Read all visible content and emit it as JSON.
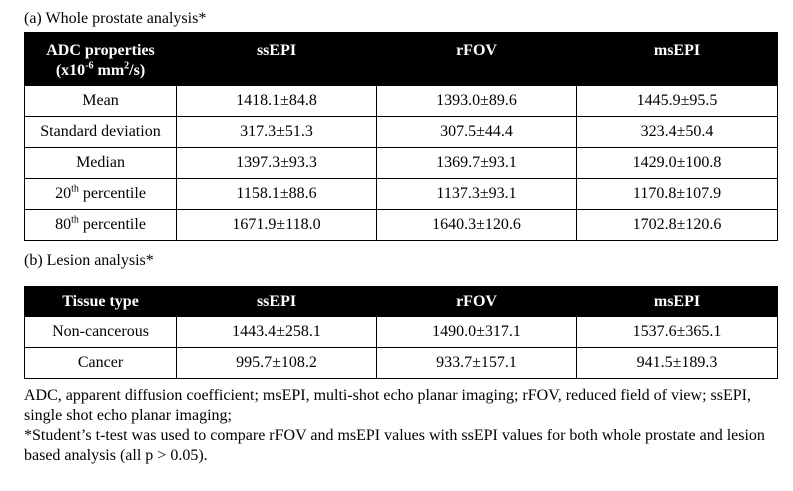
{
  "caption_a": "(a) Whole prostate analysis*",
  "table_a": {
    "header": {
      "col0_line1": "ADC properties",
      "col0_line2_pre": "(x10",
      "col0_line2_sup1": "-6",
      "col0_line2_mid": " mm",
      "col0_line2_sup2": "2",
      "col0_line2_post": "/s)",
      "col1": "ssEPI",
      "col2": "rFOV",
      "col3": "msEPI"
    },
    "rows": [
      {
        "label": "Mean",
        "label_sup": "",
        "label_post": "",
        "ssEPI": "1418.1±84.8",
        "rFOV": "1393.0±89.6",
        "msEPI": "1445.9±95.5"
      },
      {
        "label": "Standard deviation",
        "label_sup": "",
        "label_post": "",
        "ssEPI": "317.3±51.3",
        "rFOV": "307.5±44.4",
        "msEPI": "323.4±50.4"
      },
      {
        "label": "Median",
        "label_sup": "",
        "label_post": "",
        "ssEPI": "1397.3±93.3",
        "rFOV": "1369.7±93.1",
        "msEPI": "1429.0±100.8"
      },
      {
        "label": "20",
        "label_sup": "th",
        "label_post": " percentile",
        "ssEPI": "1158.1±88.6",
        "rFOV": "1137.3±93.1",
        "msEPI": "1170.8±107.9"
      },
      {
        "label": "80",
        "label_sup": "th",
        "label_post": " percentile",
        "ssEPI": "1671.9±118.0",
        "rFOV": "1640.3±120.6",
        "msEPI": "1702.8±120.6"
      }
    ]
  },
  "caption_b": "(b) Lesion analysis*",
  "table_b": {
    "header": {
      "col0": "Tissue type",
      "col1": "ssEPI",
      "col2": "rFOV",
      "col3": "msEPI"
    },
    "rows": [
      {
        "label": "Non-cancerous",
        "ssEPI": "1443.4±258.1",
        "rFOV": "1490.0±317.1",
        "msEPI": "1537.6±365.1"
      },
      {
        "label": "Cancer",
        "ssEPI": "995.7±108.2",
        "rFOV": "933.7±157.1",
        "msEPI": "941.5±189.3"
      }
    ]
  },
  "notes": {
    "line1": "ADC, apparent diffusion coefficient; msEPI, multi-shot echo planar imaging; rFOV, reduced field of view; ssEPI, single shot echo planar imaging;",
    "line2": "*Student’s t-test was used to compare rFOV and msEPI values with ssEPI values for both whole prostate and lesion based analysis (all p > 0.05)."
  }
}
